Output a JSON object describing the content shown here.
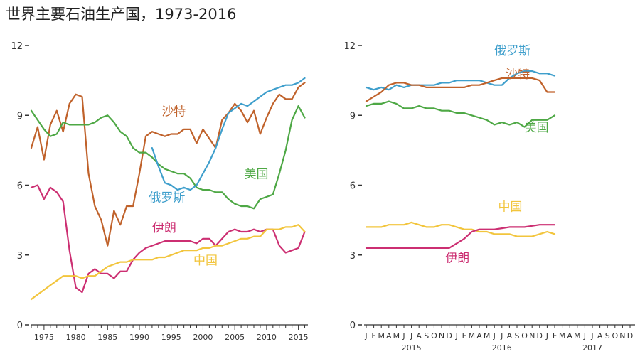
{
  "title": "世界主要石油生产国，1973-2016",
  "colors": {
    "saudi": "#c0622b",
    "usa": "#4ea845",
    "russia": "#3f9fcc",
    "iran": "#cc2f72",
    "china": "#f2c53d",
    "axis": "#333333"
  },
  "chart_data": [
    {
      "type": "line",
      "ylim": [
        0,
        12
      ],
      "yticks": [
        "0",
        "3",
        "6",
        "9",
        "12"
      ],
      "xlim": [
        1973,
        2016.5
      ],
      "xticks": [
        "1975",
        "1980",
        "1985",
        "1990",
        "1995",
        "2000",
        "2005",
        "2010",
        "2015"
      ],
      "series": [
        {
          "name": "沙特",
          "key": "saudi",
          "x": [
            1973,
            1974,
            1975,
            1976,
            1977,
            1978,
            1979,
            1980,
            1981,
            1982,
            1983,
            1984,
            1985,
            1986,
            1987,
            1988,
            1989,
            1990,
            1991,
            1992,
            1993,
            1994,
            1995,
            1996,
            1997,
            1998,
            1999,
            2000,
            2001,
            2002,
            2003,
            2004,
            2005,
            2006,
            2007,
            2008,
            2009,
            2010,
            2011,
            2012,
            2013,
            2014,
            2015,
            2016
          ],
          "values": [
            7.6,
            8.5,
            7.1,
            8.6,
            9.2,
            8.3,
            9.5,
            9.9,
            9.8,
            6.5,
            5.1,
            4.5,
            3.4,
            4.9,
            4.3,
            5.1,
            5.1,
            6.5,
            8.1,
            8.3,
            8.2,
            8.1,
            8.2,
            8.2,
            8.4,
            8.4,
            7.8,
            8.4,
            8.0,
            7.6,
            8.8,
            9.1,
            9.5,
            9.2,
            8.7,
            9.2,
            8.2,
            8.9,
            9.5,
            9.9,
            9.7,
            9.7,
            10.2,
            10.4
          ]
        },
        {
          "name": "美国",
          "key": "usa",
          "x": [
            1973,
            1974,
            1975,
            1976,
            1977,
            1978,
            1979,
            1980,
            1981,
            1982,
            1983,
            1984,
            1985,
            1986,
            1987,
            1988,
            1989,
            1990,
            1991,
            1992,
            1993,
            1994,
            1995,
            1996,
            1997,
            1998,
            1999,
            2000,
            2001,
            2002,
            2003,
            2004,
            2005,
            2006,
            2007,
            2008,
            2009,
            2010,
            2011,
            2012,
            2013,
            2014,
            2015,
            2016
          ],
          "values": [
            9.2,
            8.8,
            8.4,
            8.1,
            8.2,
            8.7,
            8.6,
            8.6,
            8.6,
            8.6,
            8.7,
            8.9,
            9.0,
            8.7,
            8.3,
            8.1,
            7.6,
            7.4,
            7.4,
            7.2,
            6.9,
            6.7,
            6.6,
            6.5,
            6.5,
            6.3,
            5.9,
            5.8,
            5.8,
            5.7,
            5.7,
            5.4,
            5.2,
            5.1,
            5.1,
            5.0,
            5.4,
            5.5,
            5.6,
            6.5,
            7.5,
            8.8,
            9.4,
            8.9
          ]
        },
        {
          "name": "俄罗斯",
          "key": "russia",
          "x": [
            1992,
            1993,
            1994,
            1995,
            1996,
            1997,
            1998,
            1999,
            2000,
            2001,
            2002,
            2003,
            2004,
            2005,
            2006,
            2007,
            2008,
            2009,
            2010,
            2011,
            2012,
            2013,
            2014,
            2015,
            2016
          ],
          "values": [
            7.6,
            6.8,
            6.1,
            6.0,
            5.8,
            5.9,
            5.8,
            6.0,
            6.5,
            7.0,
            7.6,
            8.4,
            9.1,
            9.3,
            9.5,
            9.4,
            9.6,
            9.8,
            10.0,
            10.1,
            10.2,
            10.3,
            10.3,
            10.4,
            10.6
          ]
        },
        {
          "name": "伊朗",
          "key": "iran",
          "x": [
            1973,
            1974,
            1975,
            1976,
            1977,
            1978,
            1979,
            1980,
            1981,
            1982,
            1983,
            1984,
            1985,
            1986,
            1987,
            1988,
            1989,
            1990,
            1991,
            1992,
            1993,
            1994,
            1995,
            1996,
            1997,
            1998,
            1999,
            2000,
            2001,
            2002,
            2003,
            2004,
            2005,
            2006,
            2007,
            2008,
            2009,
            2010,
            2011,
            2012,
            2013,
            2014,
            2015,
            2016
          ],
          "values": [
            5.9,
            6.0,
            5.4,
            5.9,
            5.7,
            5.3,
            3.2,
            1.6,
            1.4,
            2.2,
            2.4,
            2.2,
            2.2,
            2.0,
            2.3,
            2.3,
            2.8,
            3.1,
            3.3,
            3.4,
            3.5,
            3.6,
            3.6,
            3.6,
            3.6,
            3.6,
            3.5,
            3.7,
            3.7,
            3.4,
            3.7,
            4.0,
            4.1,
            4.0,
            4.0,
            4.1,
            4.0,
            4.1,
            4.1,
            3.4,
            3.1,
            3.2,
            3.3,
            4.0
          ]
        },
        {
          "name": "中国",
          "key": "china",
          "x": [
            1973,
            1974,
            1975,
            1976,
            1977,
            1978,
            1979,
            1980,
            1981,
            1982,
            1983,
            1984,
            1985,
            1986,
            1987,
            1988,
            1989,
            1990,
            1991,
            1992,
            1993,
            1994,
            1995,
            1996,
            1997,
            1998,
            1999,
            2000,
            2001,
            2002,
            2003,
            2004,
            2005,
            2006,
            2007,
            2008,
            2009,
            2010,
            2011,
            2012,
            2013,
            2014,
            2015,
            2016
          ],
          "values": [
            1.1,
            1.3,
            1.5,
            1.7,
            1.9,
            2.1,
            2.1,
            2.1,
            2.0,
            2.1,
            2.1,
            2.3,
            2.5,
            2.6,
            2.7,
            2.7,
            2.8,
            2.8,
            2.8,
            2.8,
            2.9,
            2.9,
            3.0,
            3.1,
            3.2,
            3.2,
            3.2,
            3.3,
            3.3,
            3.4,
            3.4,
            3.5,
            3.6,
            3.7,
            3.7,
            3.8,
            3.8,
            4.1,
            4.1,
            4.1,
            4.2,
            4.2,
            4.3,
            4.0
          ]
        }
      ],
      "annotations": [
        {
          "text": "沙特",
          "key": "saudi",
          "x": 1993.5,
          "y": 9.0
        },
        {
          "text": "俄罗斯",
          "key": "russia",
          "x": 1991.5,
          "y": 5.3
        },
        {
          "text": "美国",
          "key": "usa",
          "x": 2006.5,
          "y": 6.3
        },
        {
          "text": "伊朗",
          "key": "iran",
          "x": 1992.0,
          "y": 4.0
        },
        {
          "text": "中国",
          "key": "china",
          "x": 1998.5,
          "y": 2.6
        }
      ]
    },
    {
      "type": "line",
      "ylim": [
        0,
        12
      ],
      "yticks": [
        "0",
        "3",
        "6",
        "9",
        "12"
      ],
      "xlim": [
        0,
        36
      ],
      "month_labels": [
        "J",
        "F",
        "M",
        "A",
        "M",
        "J",
        "J",
        "A",
        "S",
        "O",
        "N",
        "D",
        "J",
        "F",
        "M",
        "A",
        "M",
        "J",
        "J",
        "A",
        "S",
        "O",
        "N",
        "D",
        "J",
        "F",
        "M",
        "A",
        "M",
        "J",
        "J",
        "A",
        "S",
        "O",
        "N",
        "D"
      ],
      "year_labels": [
        {
          "text": "2015",
          "month": 6
        },
        {
          "text": "2016",
          "month": 18
        },
        {
          "text": "2017",
          "month": 30
        }
      ],
      "series": [
        {
          "name": "俄罗斯",
          "key": "russia",
          "values": [
            10.2,
            10.1,
            10.2,
            10.1,
            10.3,
            10.2,
            10.3,
            10.3,
            10.3,
            10.3,
            10.4,
            10.4,
            10.5,
            10.5,
            10.5,
            10.5,
            10.4,
            10.3,
            10.3,
            10.6,
            10.8,
            10.9,
            10.9,
            10.8,
            10.8,
            10.7
          ]
        },
        {
          "name": "沙特",
          "key": "saudi",
          "values": [
            9.6,
            9.8,
            10.0,
            10.3,
            10.4,
            10.4,
            10.3,
            10.3,
            10.2,
            10.2,
            10.2,
            10.2,
            10.2,
            10.2,
            10.3,
            10.3,
            10.4,
            10.5,
            10.6,
            10.6,
            10.6,
            10.6,
            10.6,
            10.5,
            10.0,
            10.0
          ]
        },
        {
          "name": "美国",
          "key": "usa",
          "values": [
            9.4,
            9.5,
            9.5,
            9.6,
            9.5,
            9.3,
            9.3,
            9.4,
            9.3,
            9.3,
            9.2,
            9.2,
            9.1,
            9.1,
            9.0,
            8.9,
            8.8,
            8.6,
            8.7,
            8.6,
            8.7,
            8.5,
            8.8,
            8.8,
            8.8,
            9.0
          ]
        },
        {
          "name": "中国",
          "key": "china",
          "values": [
            4.2,
            4.2,
            4.2,
            4.3,
            4.3,
            4.3,
            4.4,
            4.3,
            4.2,
            4.2,
            4.3,
            4.3,
            4.2,
            4.1,
            4.1,
            4.0,
            4.0,
            3.9,
            3.9,
            3.9,
            3.8,
            3.8,
            3.8,
            3.9,
            4.0,
            3.9
          ]
        },
        {
          "name": "伊朗",
          "key": "iran",
          "values": [
            3.3,
            3.3,
            3.3,
            3.3,
            3.3,
            3.3,
            3.3,
            3.3,
            3.3,
            3.3,
            3.3,
            3.3,
            3.5,
            3.7,
            4.0,
            4.1,
            4.1,
            4.1,
            4.15,
            4.2,
            4.2,
            4.2,
            4.25,
            4.3,
            4.3,
            4.3
          ]
        }
      ],
      "annotations": [
        {
          "text": "俄罗斯",
          "key": "russia",
          "x": 17.0,
          "y": 11.6
        },
        {
          "text": "沙特",
          "key": "saudi",
          "x": 18.5,
          "y": 10.6
        },
        {
          "text": "美国",
          "key": "usa",
          "x": 21.0,
          "y": 8.3
        },
        {
          "text": "中国",
          "key": "china",
          "x": 17.5,
          "y": 4.9
        },
        {
          "text": "伊朗",
          "key": "iran",
          "x": 10.5,
          "y": 2.7
        }
      ]
    }
  ]
}
